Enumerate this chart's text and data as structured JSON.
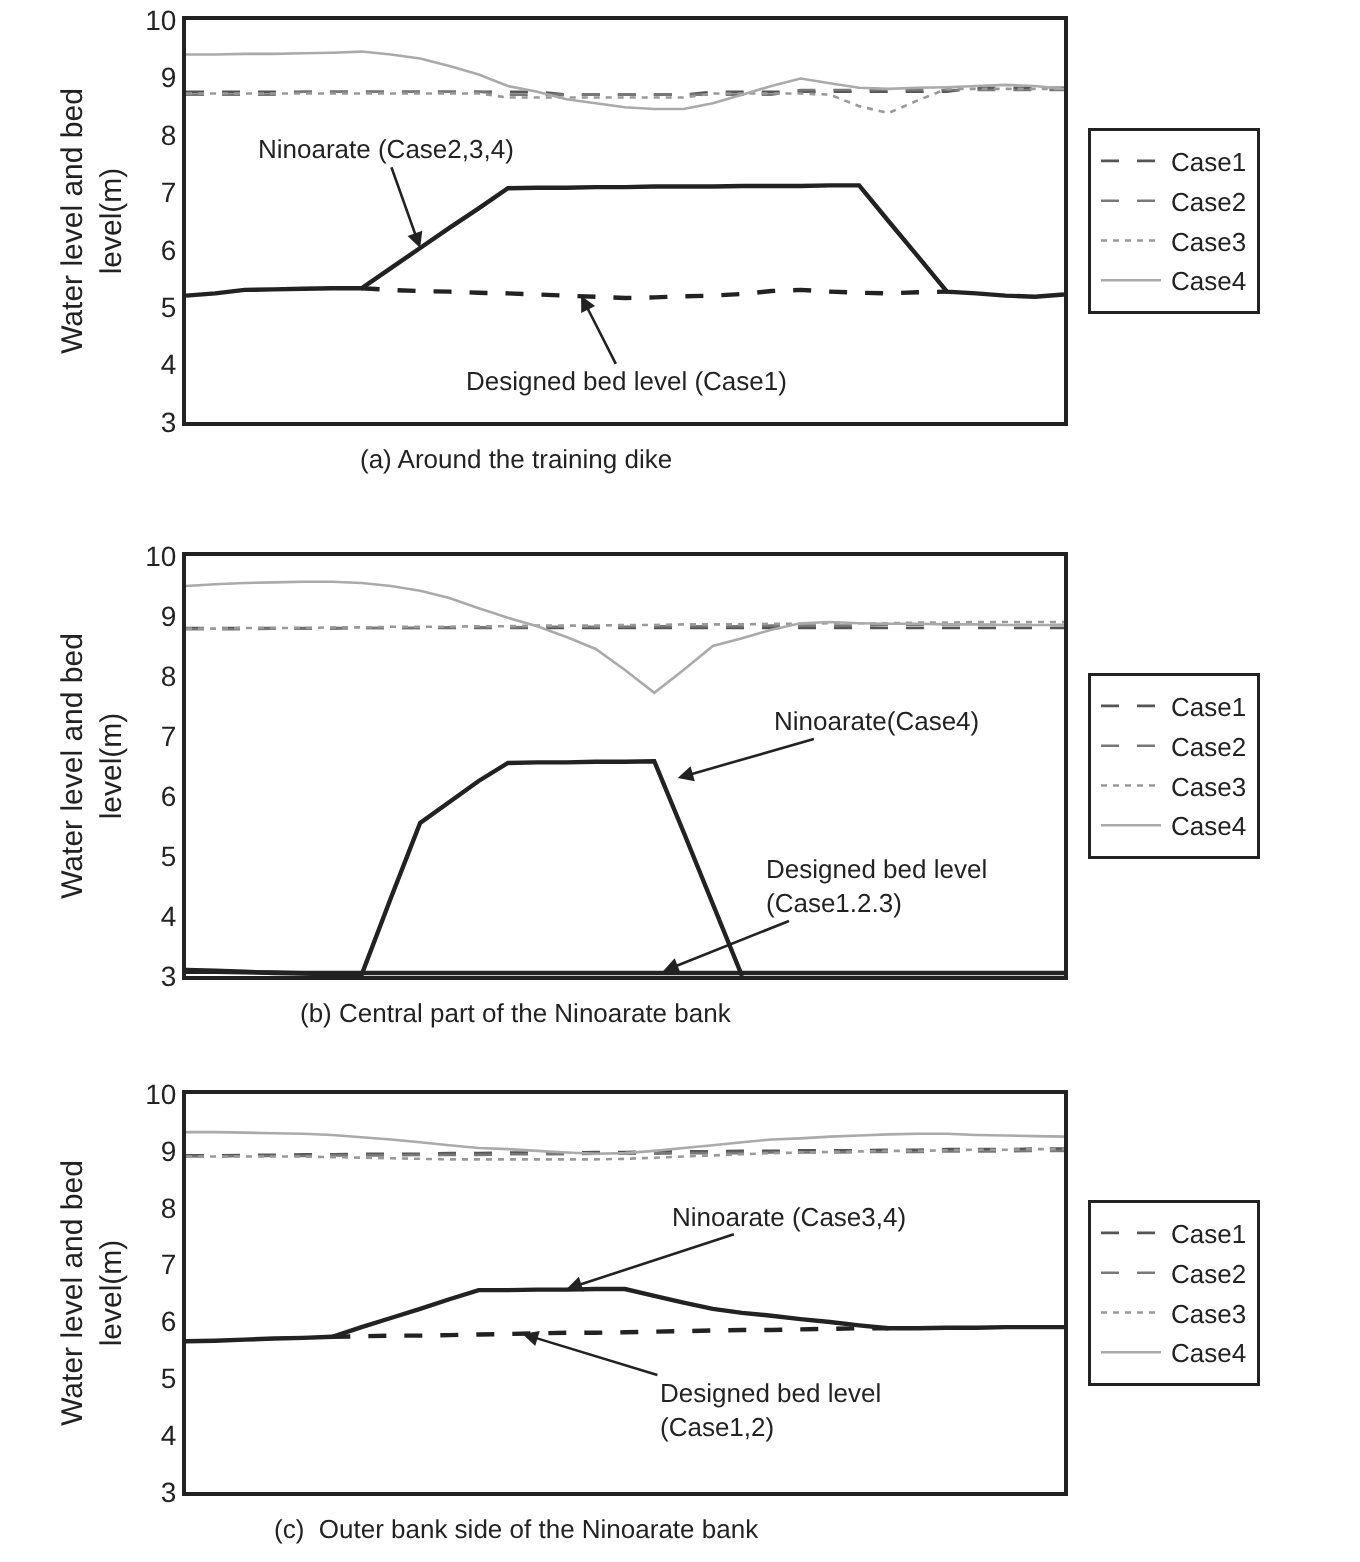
{
  "chart_data": [
    {
      "type": "line",
      "title": "(a) Around the training dike",
      "ylabel": "Water level and bed level(m)",
      "categories": [
        null,
        null,
        null,
        null,
        null,
        null,
        null,
        null,
        null,
        null,
        null,
        null,
        null,
        null,
        null,
        null,
        null,
        null,
        null,
        null,
        null,
        null,
        null,
        null,
        null,
        null,
        null,
        null,
        null,
        null,
        null
      ],
      "ylim": [
        3,
        10
      ],
      "yticks": [
        3,
        4,
        5,
        6,
        7,
        8,
        9,
        10
      ],
      "legend": "right",
      "tick_labels": "y",
      "series": [
        {
          "name": "Case1",
          "color": "#555555",
          "line_style": "dashed",
          "values": [
            8.75,
            8.75,
            8.75,
            8.75,
            8.75,
            8.75,
            8.75,
            8.75,
            8.75,
            8.75,
            8.75,
            8.75,
            8.75,
            8.7,
            8.7,
            8.7,
            8.7,
            8.7,
            8.75,
            8.75,
            8.75,
            8.75,
            8.75,
            8.75,
            8.75,
            8.75,
            8.75,
            8.82,
            8.82,
            8.82,
            8.82
          ]
        },
        {
          "name": "Case2",
          "color": "#777777",
          "line_style": "dashed",
          "values": [
            8.7,
            8.7,
            8.7,
            8.7,
            8.75,
            8.75,
            8.75,
            8.75,
            8.75,
            8.75,
            8.75,
            8.7,
            8.7,
            8.7,
            8.7,
            8.7,
            8.7,
            8.7,
            8.7,
            8.7,
            8.7,
            8.78,
            8.78,
            8.78,
            8.78,
            8.78,
            8.78,
            8.78,
            8.78,
            8.78,
            8.78
          ]
        },
        {
          "name": "Case3",
          "color": "#999999",
          "line_style": "dotted",
          "values": [
            8.72,
            8.72,
            8.72,
            8.72,
            8.72,
            8.72,
            8.72,
            8.72,
            8.72,
            8.72,
            8.72,
            8.65,
            8.65,
            8.65,
            8.65,
            8.65,
            8.65,
            8.65,
            8.72,
            8.72,
            8.72,
            8.72,
            8.7,
            8.5,
            8.38,
            8.6,
            8.8,
            8.8,
            8.8,
            8.8,
            8.8
          ]
        },
        {
          "name": "Case4",
          "color": "#aaaaaa",
          "line_style": "solid",
          "values": [
            9.4,
            9.4,
            9.41,
            9.41,
            9.42,
            9.43,
            9.45,
            9.4,
            9.33,
            9.2,
            9.05,
            8.85,
            8.75,
            8.62,
            8.55,
            8.48,
            8.45,
            8.45,
            8.55,
            8.7,
            8.85,
            8.98,
            8.9,
            8.82,
            8.8,
            8.82,
            8.83,
            8.85,
            8.87,
            8.85,
            8.8
          ]
        },
        {
          "color": "#222222",
          "line_style": "solid",
          "values": [
            5.2,
            5.24,
            5.3,
            5.31,
            5.32,
            5.33,
            5.33,
            5.68,
            6.03,
            6.38,
            6.72,
            7.07,
            7.08,
            7.08,
            7.09,
            7.09,
            7.1,
            7.1,
            7.1,
            7.11,
            7.11,
            7.11,
            7.12,
            7.12,
            6.5,
            5.89,
            5.27,
            5.24,
            5.2,
            5.18,
            5.22
          ]
        },
        {
          "color": "#222222",
          "line_style": "dashed",
          "values": [
            null,
            null,
            null,
            null,
            null,
            null,
            5.33,
            5.3,
            5.28,
            5.27,
            5.25,
            5.24,
            5.22,
            5.2,
            5.18,
            5.16,
            5.17,
            5.19,
            5.2,
            5.23,
            5.28,
            5.3,
            5.27,
            5.25,
            5.24,
            5.26,
            5.27,
            null,
            null,
            null,
            null
          ]
        }
      ],
      "annotations": [
        "Ninoarate (Case2,3,4)",
        "Designed bed level (Case1)"
      ]
    },
    {
      "type": "line",
      "title": "(b) Central part of the Ninoarate bank",
      "ylabel": "Water level and bed level(m)",
      "categories": [
        null,
        null,
        null,
        null,
        null,
        null,
        null,
        null,
        null,
        null,
        null,
        null,
        null,
        null,
        null,
        null,
        null,
        null,
        null,
        null,
        null,
        null,
        null,
        null,
        null,
        null,
        null,
        null,
        null,
        null,
        null
      ],
      "ylim": [
        3,
        10
      ],
      "yticks": [
        3,
        4,
        5,
        6,
        7,
        8,
        9,
        10
      ],
      "legend": "right",
      "tick_labels": "y",
      "series": [
        {
          "name": "Case1",
          "color": "#555555",
          "line_style": "dashed",
          "values": [
            8.8,
            8.8,
            8.8,
            8.8,
            8.8,
            8.8,
            8.8,
            8.8,
            8.8,
            8.8,
            8.8,
            8.8,
            8.8,
            8.8,
            8.8,
            8.8,
            8.8,
            8.8,
            8.8,
            8.8,
            8.8,
            8.8,
            8.8,
            8.8,
            8.8,
            8.8,
            8.8,
            8.8,
            8.8,
            8.8,
            8.8
          ]
        },
        {
          "name": "Case2",
          "color": "#777777",
          "line_style": "dashed",
          "values": [
            8.78,
            8.78,
            8.78,
            8.79,
            8.79,
            8.79,
            8.8,
            8.8,
            8.8,
            8.81,
            8.81,
            8.81,
            8.82,
            8.82,
            8.82,
            8.82,
            8.83,
            8.83,
            8.83,
            8.83,
            8.84,
            8.84,
            8.84,
            8.84,
            8.85,
            8.85,
            8.85,
            8.85,
            8.85,
            8.85,
            8.85
          ]
        },
        {
          "name": "Case3",
          "color": "#999999",
          "line_style": "dotted",
          "values": [
            8.79,
            8.79,
            8.8,
            8.8,
            8.8,
            8.81,
            8.81,
            8.82,
            8.82,
            8.82,
            8.83,
            8.83,
            8.84,
            8.84,
            8.84,
            8.85,
            8.85,
            8.86,
            8.86,
            8.86,
            8.87,
            8.87,
            8.88,
            8.88,
            8.88,
            8.89,
            8.89,
            8.9,
            8.9,
            8.9,
            8.9
          ]
        },
        {
          "name": "Case4",
          "color": "#aaaaaa",
          "line_style": "solid",
          "values": [
            9.5,
            9.53,
            9.55,
            9.56,
            9.57,
            9.57,
            9.55,
            9.5,
            9.42,
            9.3,
            9.13,
            8.97,
            8.83,
            8.65,
            8.45,
            8.1,
            7.72,
            8.1,
            8.5,
            8.63,
            8.77,
            8.88,
            8.9,
            8.88,
            8.87,
            8.87,
            8.86,
            8.86,
            8.85,
            8.85,
            8.85
          ]
        },
        {
          "color": "#222222",
          "line_style": "solid",
          "values": [
            3.1,
            3.09,
            3.07,
            3.05,
            3.04,
            3.03,
            3.02,
            4.3,
            5.55,
            5.9,
            6.25,
            6.55,
            6.56,
            6.56,
            6.57,
            6.57,
            6.58,
            5.4,
            4.2,
            3.0,
            null,
            null,
            null,
            null,
            null,
            null,
            null,
            null,
            null,
            null,
            null
          ]
        },
        {
          "color": "#222222",
          "line_style": "solid",
          "values": [
            3.07,
            3.07,
            3.06,
            3.06,
            3.05,
            3.05,
            3.05,
            3.05,
            3.05,
            3.05,
            3.05,
            3.05,
            3.05,
            3.05,
            3.05,
            3.05,
            3.05,
            3.05,
            3.05,
            3.05,
            3.05,
            3.05,
            3.05,
            3.05,
            3.05,
            3.05,
            3.05,
            3.05,
            3.05,
            3.05,
            3.05
          ]
        }
      ],
      "annotations": [
        "Ninoarate(Case4)",
        "Designed bed level (Case1.2.3)"
      ]
    },
    {
      "type": "line",
      "title": "(c)  Outer bank side of the Ninoarate bank",
      "ylabel": "Water level and bed level(m)",
      "categories": [
        null,
        null,
        null,
        null,
        null,
        null,
        null,
        null,
        null,
        null,
        null,
        null,
        null,
        null,
        null,
        null,
        null,
        null,
        null,
        null,
        null,
        null,
        null,
        null,
        null,
        null,
        null,
        null,
        null,
        null,
        null
      ],
      "ylim": [
        3,
        10
      ],
      "yticks": [
        3,
        4,
        5,
        6,
        7,
        8,
        9,
        10
      ],
      "legend": "right",
      "tick_labels": "y",
      "series": [
        {
          "name": "Case1",
          "color": "#555555",
          "line_style": "dashed",
          "values": [
            8.92,
            8.92,
            8.93,
            8.93,
            8.94,
            8.94,
            8.95,
            8.95,
            8.95,
            8.96,
            8.96,
            8.97,
            8.97,
            8.97,
            8.98,
            8.98,
            8.99,
            8.99,
            8.99,
            9.0,
            9.0,
            9.01,
            9.01,
            9.01,
            9.02,
            9.02,
            9.03,
            9.03,
            9.03,
            9.04,
            9.04
          ]
        },
        {
          "name": "Case2",
          "color": "#777777",
          "line_style": "dashed",
          "values": [
            8.9,
            8.9,
            8.91,
            8.91,
            8.91,
            8.92,
            8.92,
            8.92,
            8.93,
            8.93,
            8.93,
            8.94,
            8.94,
            8.94,
            8.95,
            8.95,
            8.95,
            8.96,
            8.96,
            8.96,
            8.97,
            8.97,
            8.97,
            8.98,
            8.98,
            8.98,
            8.99,
            8.99,
            8.99,
            9.0,
            9.0
          ]
        },
        {
          "name": "Case3",
          "color": "#999999",
          "line_style": "dotted",
          "values": [
            8.9,
            8.9,
            8.9,
            8.9,
            8.9,
            8.89,
            8.88,
            8.87,
            8.86,
            8.85,
            8.85,
            8.85,
            8.85,
            8.85,
            8.85,
            8.86,
            8.88,
            8.9,
            8.92,
            8.94,
            8.96,
            8.97,
            8.98,
            8.99,
            9.0,
            9.0,
            9.01,
            9.02,
            9.02,
            9.03,
            9.03
          ]
        },
        {
          "name": "Case4",
          "color": "#aaaaaa",
          "line_style": "solid",
          "values": [
            9.33,
            9.33,
            9.32,
            9.31,
            9.3,
            9.28,
            9.24,
            9.2,
            9.15,
            9.1,
            9.05,
            9.03,
            9.0,
            8.97,
            8.95,
            8.96,
            9.0,
            9.05,
            9.1,
            9.15,
            9.2,
            9.22,
            9.25,
            9.27,
            9.29,
            9.3,
            9.3,
            9.28,
            9.27,
            9.26,
            9.25
          ]
        },
        {
          "color": "#222222",
          "line_style": "solid",
          "values": [
            5.65,
            5.66,
            5.68,
            5.7,
            5.71,
            5.73,
            5.9,
            6.06,
            6.22,
            6.39,
            6.55,
            6.55,
            6.56,
            6.56,
            6.57,
            6.57,
            6.45,
            6.33,
            6.22,
            6.15,
            6.1,
            6.04,
            5.99,
            5.93,
            5.88,
            5.88,
            5.89,
            5.89,
            5.9,
            5.9,
            5.9
          ]
        },
        {
          "color": "#222222",
          "line_style": "dashed",
          "values": [
            null,
            null,
            null,
            null,
            null,
            5.73,
            5.74,
            5.75,
            5.75,
            5.76,
            5.77,
            5.78,
            5.79,
            5.8,
            5.8,
            5.81,
            5.82,
            5.83,
            5.84,
            5.85,
            5.85,
            5.86,
            5.87,
            5.88,
            5.88,
            null,
            null,
            null,
            null,
            null,
            null
          ]
        }
      ],
      "annotations": [
        "Ninoarate (Case3,4)",
        "Designed bed level (Case1,2)"
      ]
    }
  ]
}
